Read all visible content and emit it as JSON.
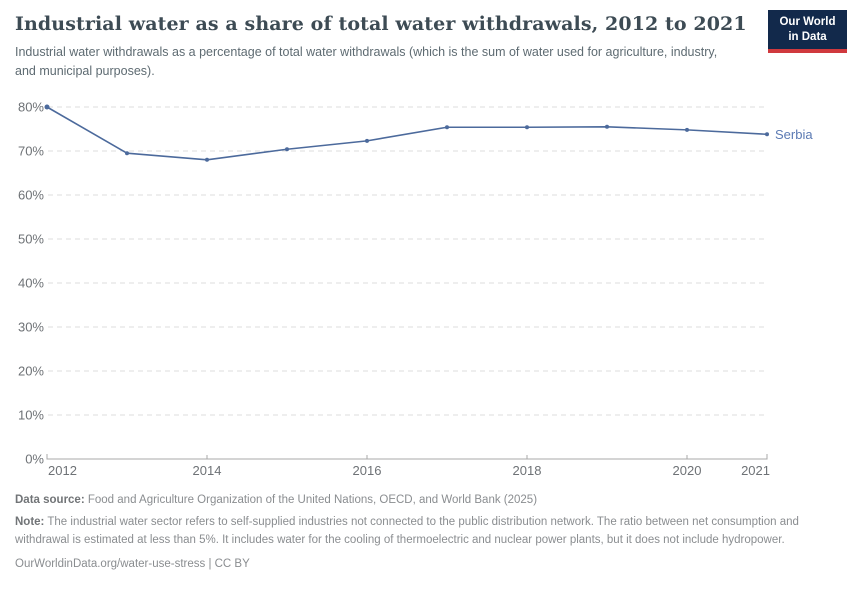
{
  "header": {
    "title": "Industrial water as a share of total water withdrawals, 2012 to 2021",
    "subtitle": "Industrial water withdrawals as a percentage of total water withdrawals (which is the sum of water used for agriculture, industry, and municipal purposes)."
  },
  "logo": {
    "line1": "Our World",
    "line2": "in Data",
    "bg_color": "#12294b",
    "accent_color": "#d0393e"
  },
  "chart_data": {
    "type": "line",
    "title": "Industrial water as a share of total water withdrawals, 2012 to 2021",
    "x": [
      2012,
      2013,
      2014,
      2015,
      2016,
      2017,
      2018,
      2019,
      2020,
      2021
    ],
    "series": [
      {
        "name": "Serbia",
        "values": [
          80.0,
          69.5,
          68.0,
          70.4,
          72.3,
          75.4,
          75.4,
          75.5,
          74.8,
          73.8
        ],
        "color": "#4c6a9c",
        "label_color": "#5b7ab3"
      }
    ],
    "xlabel": "",
    "ylabel": "",
    "ylim": [
      0,
      80
    ],
    "y_ticks": [
      0,
      10,
      20,
      30,
      40,
      50,
      60,
      70,
      80
    ],
    "y_tick_suffix": "%",
    "x_ticks": [
      2012,
      2014,
      2016,
      2018,
      2020,
      2021
    ],
    "grid": "horizontal-dashed",
    "grid_color": "#dcdcdc",
    "axis_color": "#a8a8a8",
    "tick_label_color": "#6e7276",
    "legend": "series label at right end of line"
  },
  "footer": {
    "data_source_label": "Data source:",
    "data_source_text": " Food and Agriculture Organization of the United Nations, OECD, and World Bank (2025)",
    "note_label": "Note:",
    "note_text": " The industrial water sector refers to self-supplied industries not connected to the public distribution network. The ratio between net consumption and withdrawal is estimated at less than 5%. It includes water for the cooling of thermoelectric and nuclear power plants, but it does not include hydropower.",
    "link": "OurWorldinData.org/water-use-stress",
    "license": " | CC BY"
  }
}
